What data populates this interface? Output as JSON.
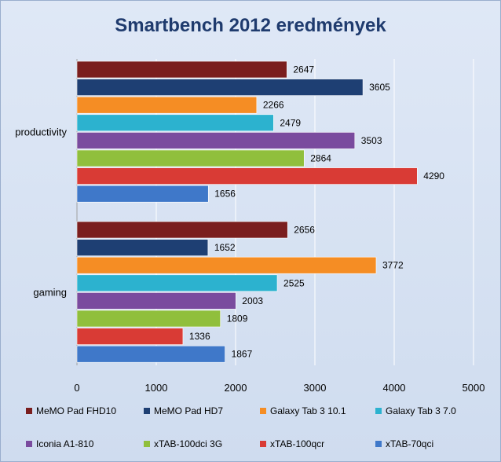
{
  "chart_data": {
    "type": "bar",
    "orientation": "horizontal",
    "title": "Smartbench 2012 eredmények",
    "categories": [
      "productivity",
      "gaming"
    ],
    "series": [
      {
        "name": "MeMO Pad FHD10",
        "color": "#7a1e1e",
        "values": [
          2647,
          2656
        ]
      },
      {
        "name": "MeMO Pad HD7",
        "color": "#1e3f73",
        "values": [
          3605,
          1652
        ]
      },
      {
        "name": "Galaxy Tab 3 10.1",
        "color": "#f58d24",
        "values": [
          2266,
          3772
        ]
      },
      {
        "name": "Galaxy Tab 3 7.0",
        "color": "#2cb2cf",
        "values": [
          2479,
          2525
        ]
      },
      {
        "name": "Iconia A1-810",
        "color": "#7a4b9e",
        "values": [
          3503,
          2003
        ]
      },
      {
        "name": "xTAB-100dci 3G",
        "color": "#90bf3c",
        "values": [
          2864,
          1809
        ]
      },
      {
        "name": "xTAB-100qcr",
        "color": "#d93b35",
        "values": [
          4290,
          1336
        ]
      },
      {
        "name": "xTAB-70qci",
        "color": "#3f78c9",
        "values": [
          1656,
          1867
        ]
      }
    ],
    "xlim": [
      0,
      5000
    ],
    "ticks": [
      "0",
      "1000",
      "2000",
      "3000",
      "4000",
      "5000"
    ],
    "gridlines": true,
    "data_labels": true,
    "legend_position": "bottom"
  }
}
